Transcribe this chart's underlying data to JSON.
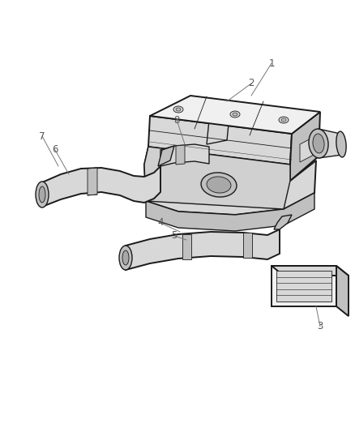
{
  "background_color": "#ffffff",
  "line_color": "#1a1a1a",
  "label_color": "#555555",
  "figure_width": 4.38,
  "figure_height": 5.33,
  "dpi": 100,
  "lw_main": 1.0,
  "lw_thin": 0.6,
  "lw_thick": 1.4
}
